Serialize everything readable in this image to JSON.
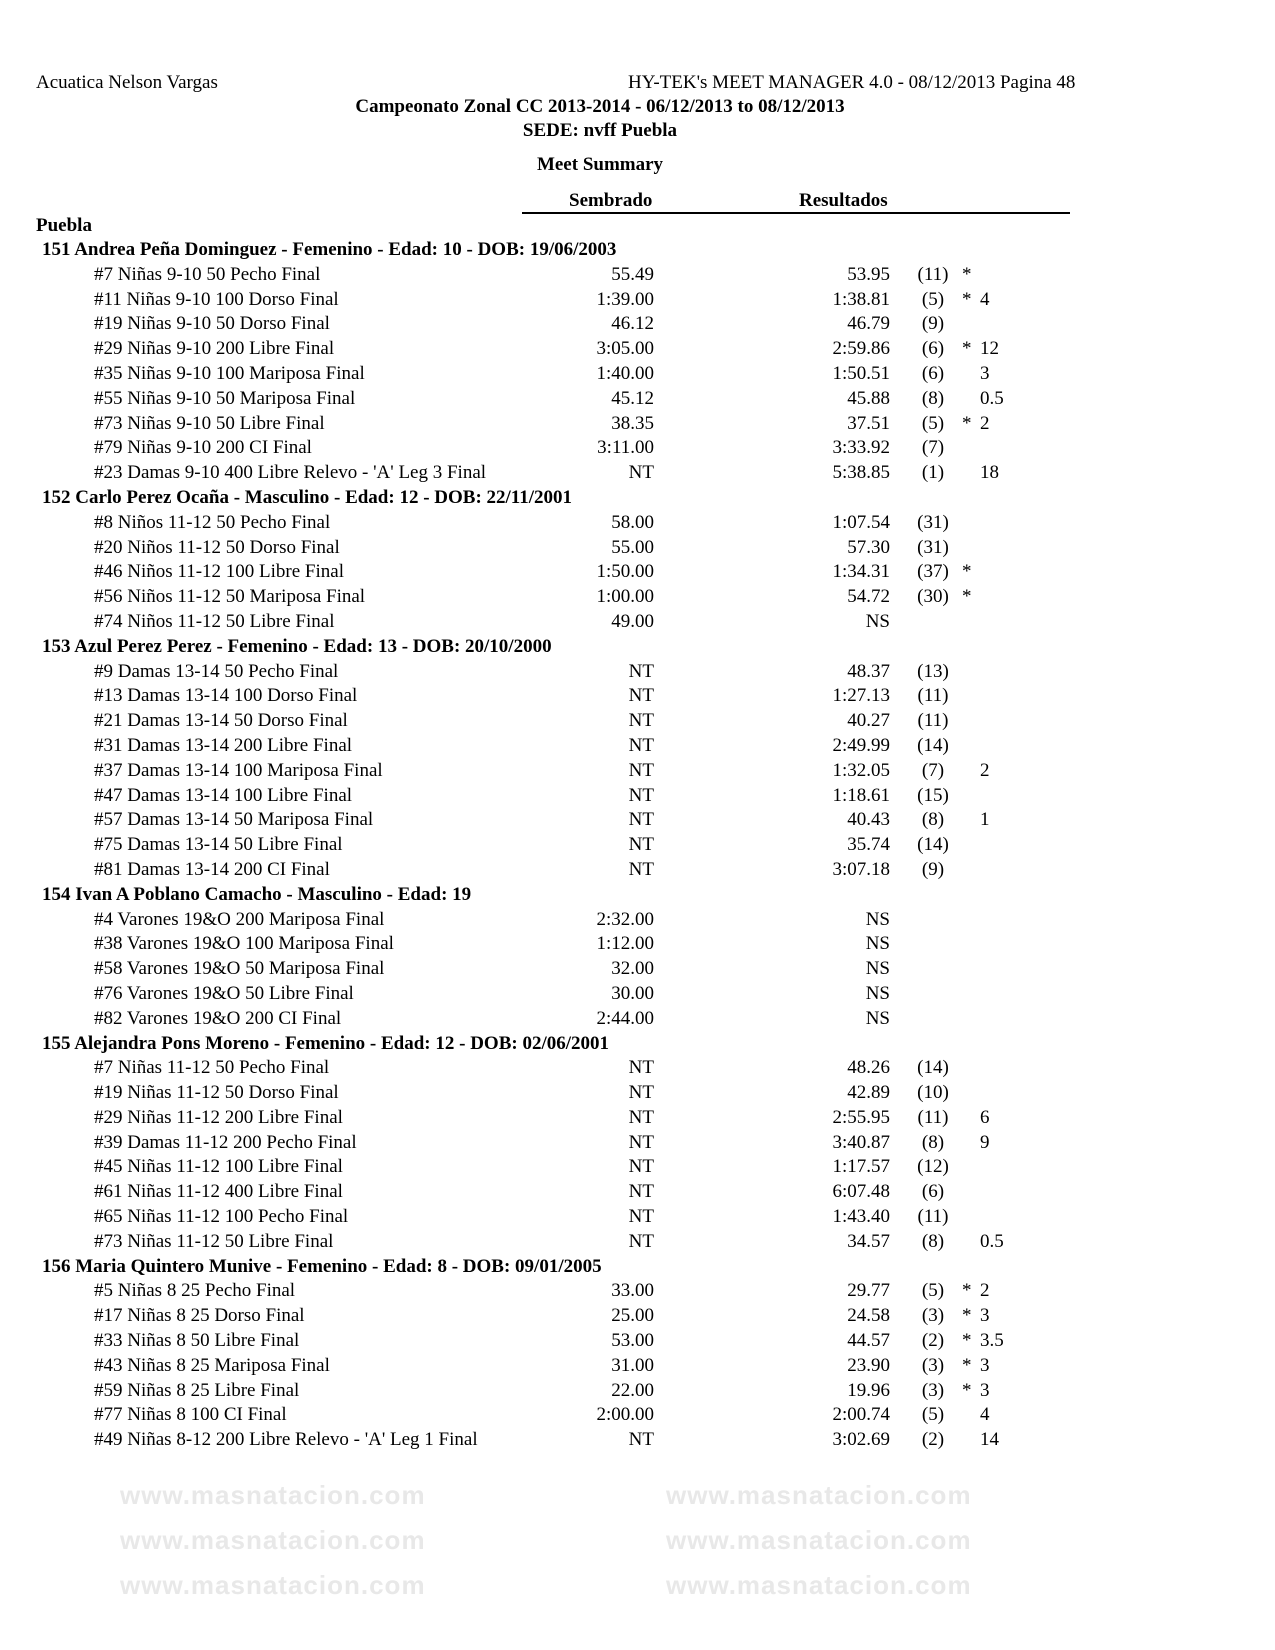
{
  "header": {
    "left": "Acuatica Nelson Vargas",
    "right": "HY-TEK's MEET MANAGER 4.0 - 08/12/2013  Pagina 48",
    "title": "Campeonato Zonal CC 2013-2014 - 06/12/2013 to 08/12/2013",
    "venue": "SEDE: nvff Puebla",
    "report": "Meet Summary",
    "col_seed": "Sembrado",
    "col_results": "Resultados",
    "team": "Puebla"
  },
  "watermark": "www.masnatacion.com",
  "athletes": [
    {
      "header": "151  Andrea Peña Dominguez - Femenino - Edad: 10 - DOB: 19/06/2003",
      "events": [
        {
          "event": "#7 Niñas 9-10 50 Pecho Final",
          "seed": "55.49",
          "result": "53.95",
          "place": "(11)",
          "star": "*",
          "points": ""
        },
        {
          "event": "#11 Niñas 9-10 100 Dorso Final",
          "seed": "1:39.00",
          "result": "1:38.81",
          "place": "(5)",
          "star": "*",
          "points": "4"
        },
        {
          "event": "#19 Niñas 9-10 50 Dorso Final",
          "seed": "46.12",
          "result": "46.79",
          "place": "(9)",
          "star": "",
          "points": ""
        },
        {
          "event": "#29 Niñas 9-10 200 Libre Final",
          "seed": "3:05.00",
          "result": "2:59.86",
          "place": "(6)",
          "star": "*",
          "points": "12"
        },
        {
          "event": "#35 Niñas 9-10 100 Mariposa Final",
          "seed": "1:40.00",
          "result": "1:50.51",
          "place": "(6)",
          "star": "",
          "points": "3"
        },
        {
          "event": "#55 Niñas 9-10 50 Mariposa Final",
          "seed": "45.12",
          "result": "45.88",
          "place": "(8)",
          "star": "",
          "points": "0.5"
        },
        {
          "event": "#73 Niñas 9-10 50 Libre Final",
          "seed": "38.35",
          "result": "37.51",
          "place": "(5)",
          "star": "*",
          "points": "2"
        },
        {
          "event": "#79 Niñas 9-10 200 CI Final",
          "seed": "3:11.00",
          "result": "3:33.92",
          "place": "(7)",
          "star": "",
          "points": ""
        },
        {
          "event": "#23 Damas 9-10 400 Libre Relevo - 'A' Leg 3 Final",
          "seed": "NT",
          "result": "5:38.85",
          "place": "(1)",
          "star": "",
          "points": "18"
        }
      ]
    },
    {
      "header": "152  Carlo Perez Ocaña - Masculino - Edad: 12 - DOB: 22/11/2001",
      "events": [
        {
          "event": "#8 Niños 11-12 50 Pecho Final",
          "seed": "58.00",
          "result": "1:07.54",
          "place": "(31)",
          "star": "",
          "points": ""
        },
        {
          "event": "#20 Niños 11-12 50 Dorso Final",
          "seed": "55.00",
          "result": "57.30",
          "place": "(31)",
          "star": "",
          "points": ""
        },
        {
          "event": "#46 Niños 11-12 100 Libre Final",
          "seed": "1:50.00",
          "result": "1:34.31",
          "place": "(37)",
          "star": "*",
          "points": ""
        },
        {
          "event": "#56 Niños 11-12 50 Mariposa Final",
          "seed": "1:00.00",
          "result": "54.72",
          "place": "(30)",
          "star": "*",
          "points": ""
        },
        {
          "event": "#74 Niños 11-12 50 Libre Final",
          "seed": "49.00",
          "result": "NS",
          "place": "",
          "star": "",
          "points": ""
        }
      ]
    },
    {
      "header": "153  Azul Perez Perez - Femenino - Edad: 13 - DOB: 20/10/2000",
      "events": [
        {
          "event": "#9 Damas 13-14 50 Pecho Final",
          "seed": "NT",
          "result": "48.37",
          "place": "(13)",
          "star": "",
          "points": ""
        },
        {
          "event": "#13 Damas 13-14 100 Dorso Final",
          "seed": "NT",
          "result": "1:27.13",
          "place": "(11)",
          "star": "",
          "points": ""
        },
        {
          "event": "#21 Damas 13-14 50 Dorso Final",
          "seed": "NT",
          "result": "40.27",
          "place": "(11)",
          "star": "",
          "points": ""
        },
        {
          "event": "#31 Damas 13-14 200 Libre Final",
          "seed": "NT",
          "result": "2:49.99",
          "place": "(14)",
          "star": "",
          "points": ""
        },
        {
          "event": "#37 Damas 13-14 100 Mariposa Final",
          "seed": "NT",
          "result": "1:32.05",
          "place": "(7)",
          "star": "",
          "points": "2"
        },
        {
          "event": "#47 Damas 13-14 100 Libre Final",
          "seed": "NT",
          "result": "1:18.61",
          "place": "(15)",
          "star": "",
          "points": ""
        },
        {
          "event": "#57 Damas 13-14 50 Mariposa Final",
          "seed": "NT",
          "result": "40.43",
          "place": "(8)",
          "star": "",
          "points": "1"
        },
        {
          "event": "#75 Damas 13-14 50 Libre Final",
          "seed": "NT",
          "result": "35.74",
          "place": "(14)",
          "star": "",
          "points": ""
        },
        {
          "event": "#81 Damas 13-14 200 CI Final",
          "seed": "NT",
          "result": "3:07.18",
          "place": "(9)",
          "star": "",
          "points": ""
        }
      ]
    },
    {
      "header": "154  Ivan A Poblano Camacho - Masculino - Edad: 19",
      "events": [
        {
          "event": "#4 Varones 19&O 200 Mariposa Final",
          "seed": "2:32.00",
          "result": "NS",
          "place": "",
          "star": "",
          "points": ""
        },
        {
          "event": "#38 Varones 19&O 100 Mariposa Final",
          "seed": "1:12.00",
          "result": "NS",
          "place": "",
          "star": "",
          "points": ""
        },
        {
          "event": "#58 Varones 19&O 50 Mariposa Final",
          "seed": "32.00",
          "result": "NS",
          "place": "",
          "star": "",
          "points": ""
        },
        {
          "event": "#76 Varones 19&O 50 Libre Final",
          "seed": "30.00",
          "result": "NS",
          "place": "",
          "star": "",
          "points": ""
        },
        {
          "event": "#82 Varones 19&O 200 CI Final",
          "seed": "2:44.00",
          "result": "NS",
          "place": "",
          "star": "",
          "points": ""
        }
      ]
    },
    {
      "header": "155  Alejandra Pons Moreno - Femenino - Edad: 12 - DOB: 02/06/2001",
      "events": [
        {
          "event": "#7 Niñas 11-12 50 Pecho Final",
          "seed": "NT",
          "result": "48.26",
          "place": "(14)",
          "star": "",
          "points": ""
        },
        {
          "event": "#19 Niñas 11-12 50 Dorso Final",
          "seed": "NT",
          "result": "42.89",
          "place": "(10)",
          "star": "",
          "points": ""
        },
        {
          "event": "#29 Niñas 11-12 200 Libre Final",
          "seed": "NT",
          "result": "2:55.95",
          "place": "(11)",
          "star": "",
          "points": "6"
        },
        {
          "event": "#39 Damas 11-12 200 Pecho Final",
          "seed": "NT",
          "result": "3:40.87",
          "place": "(8)",
          "star": "",
          "points": "9"
        },
        {
          "event": "#45 Niñas 11-12 100 Libre Final",
          "seed": "NT",
          "result": "1:17.57",
          "place": "(12)",
          "star": "",
          "points": ""
        },
        {
          "event": "#61 Niñas 11-12 400 Libre Final",
          "seed": "NT",
          "result": "6:07.48",
          "place": "(6)",
          "star": "",
          "points": ""
        },
        {
          "event": "#65 Niñas 11-12 100 Pecho Final",
          "seed": "NT",
          "result": "1:43.40",
          "place": "(11)",
          "star": "",
          "points": ""
        },
        {
          "event": "#73 Niñas 11-12 50 Libre Final",
          "seed": "NT",
          "result": "34.57",
          "place": "(8)",
          "star": "",
          "points": "0.5"
        }
      ]
    },
    {
      "header": "156  Maria Quintero Munive - Femenino - Edad: 8 - DOB: 09/01/2005",
      "events": [
        {
          "event": "#5 Niñas 8 25 Pecho Final",
          "seed": "33.00",
          "result": "29.77",
          "place": "(5)",
          "star": "*",
          "points": "2"
        },
        {
          "event": "#17 Niñas 8 25 Dorso Final",
          "seed": "25.00",
          "result": "24.58",
          "place": "(3)",
          "star": "*",
          "points": "3"
        },
        {
          "event": "#33 Niñas 8 50 Libre Final",
          "seed": "53.00",
          "result": "44.57",
          "place": "(2)",
          "star": "*",
          "points": "3.5"
        },
        {
          "event": "#43 Niñas 8 25 Mariposa Final",
          "seed": "31.00",
          "result": "23.90",
          "place": "(3)",
          "star": "*",
          "points": "3"
        },
        {
          "event": "#59 Niñas 8 25 Libre Final",
          "seed": "22.00",
          "result": "19.96",
          "place": "(3)",
          "star": "*",
          "points": "3"
        },
        {
          "event": "#77 Niñas 8 100 CI Final",
          "seed": "2:00.00",
          "result": "2:00.74",
          "place": "(5)",
          "star": "",
          "points": "4"
        },
        {
          "event": "#49 Niñas 8-12 200 Libre Relevo - 'A' Leg 1 Final",
          "seed": "NT",
          "result": "3:02.69",
          "place": "(2)",
          "star": "",
          "points": "14"
        }
      ]
    }
  ]
}
